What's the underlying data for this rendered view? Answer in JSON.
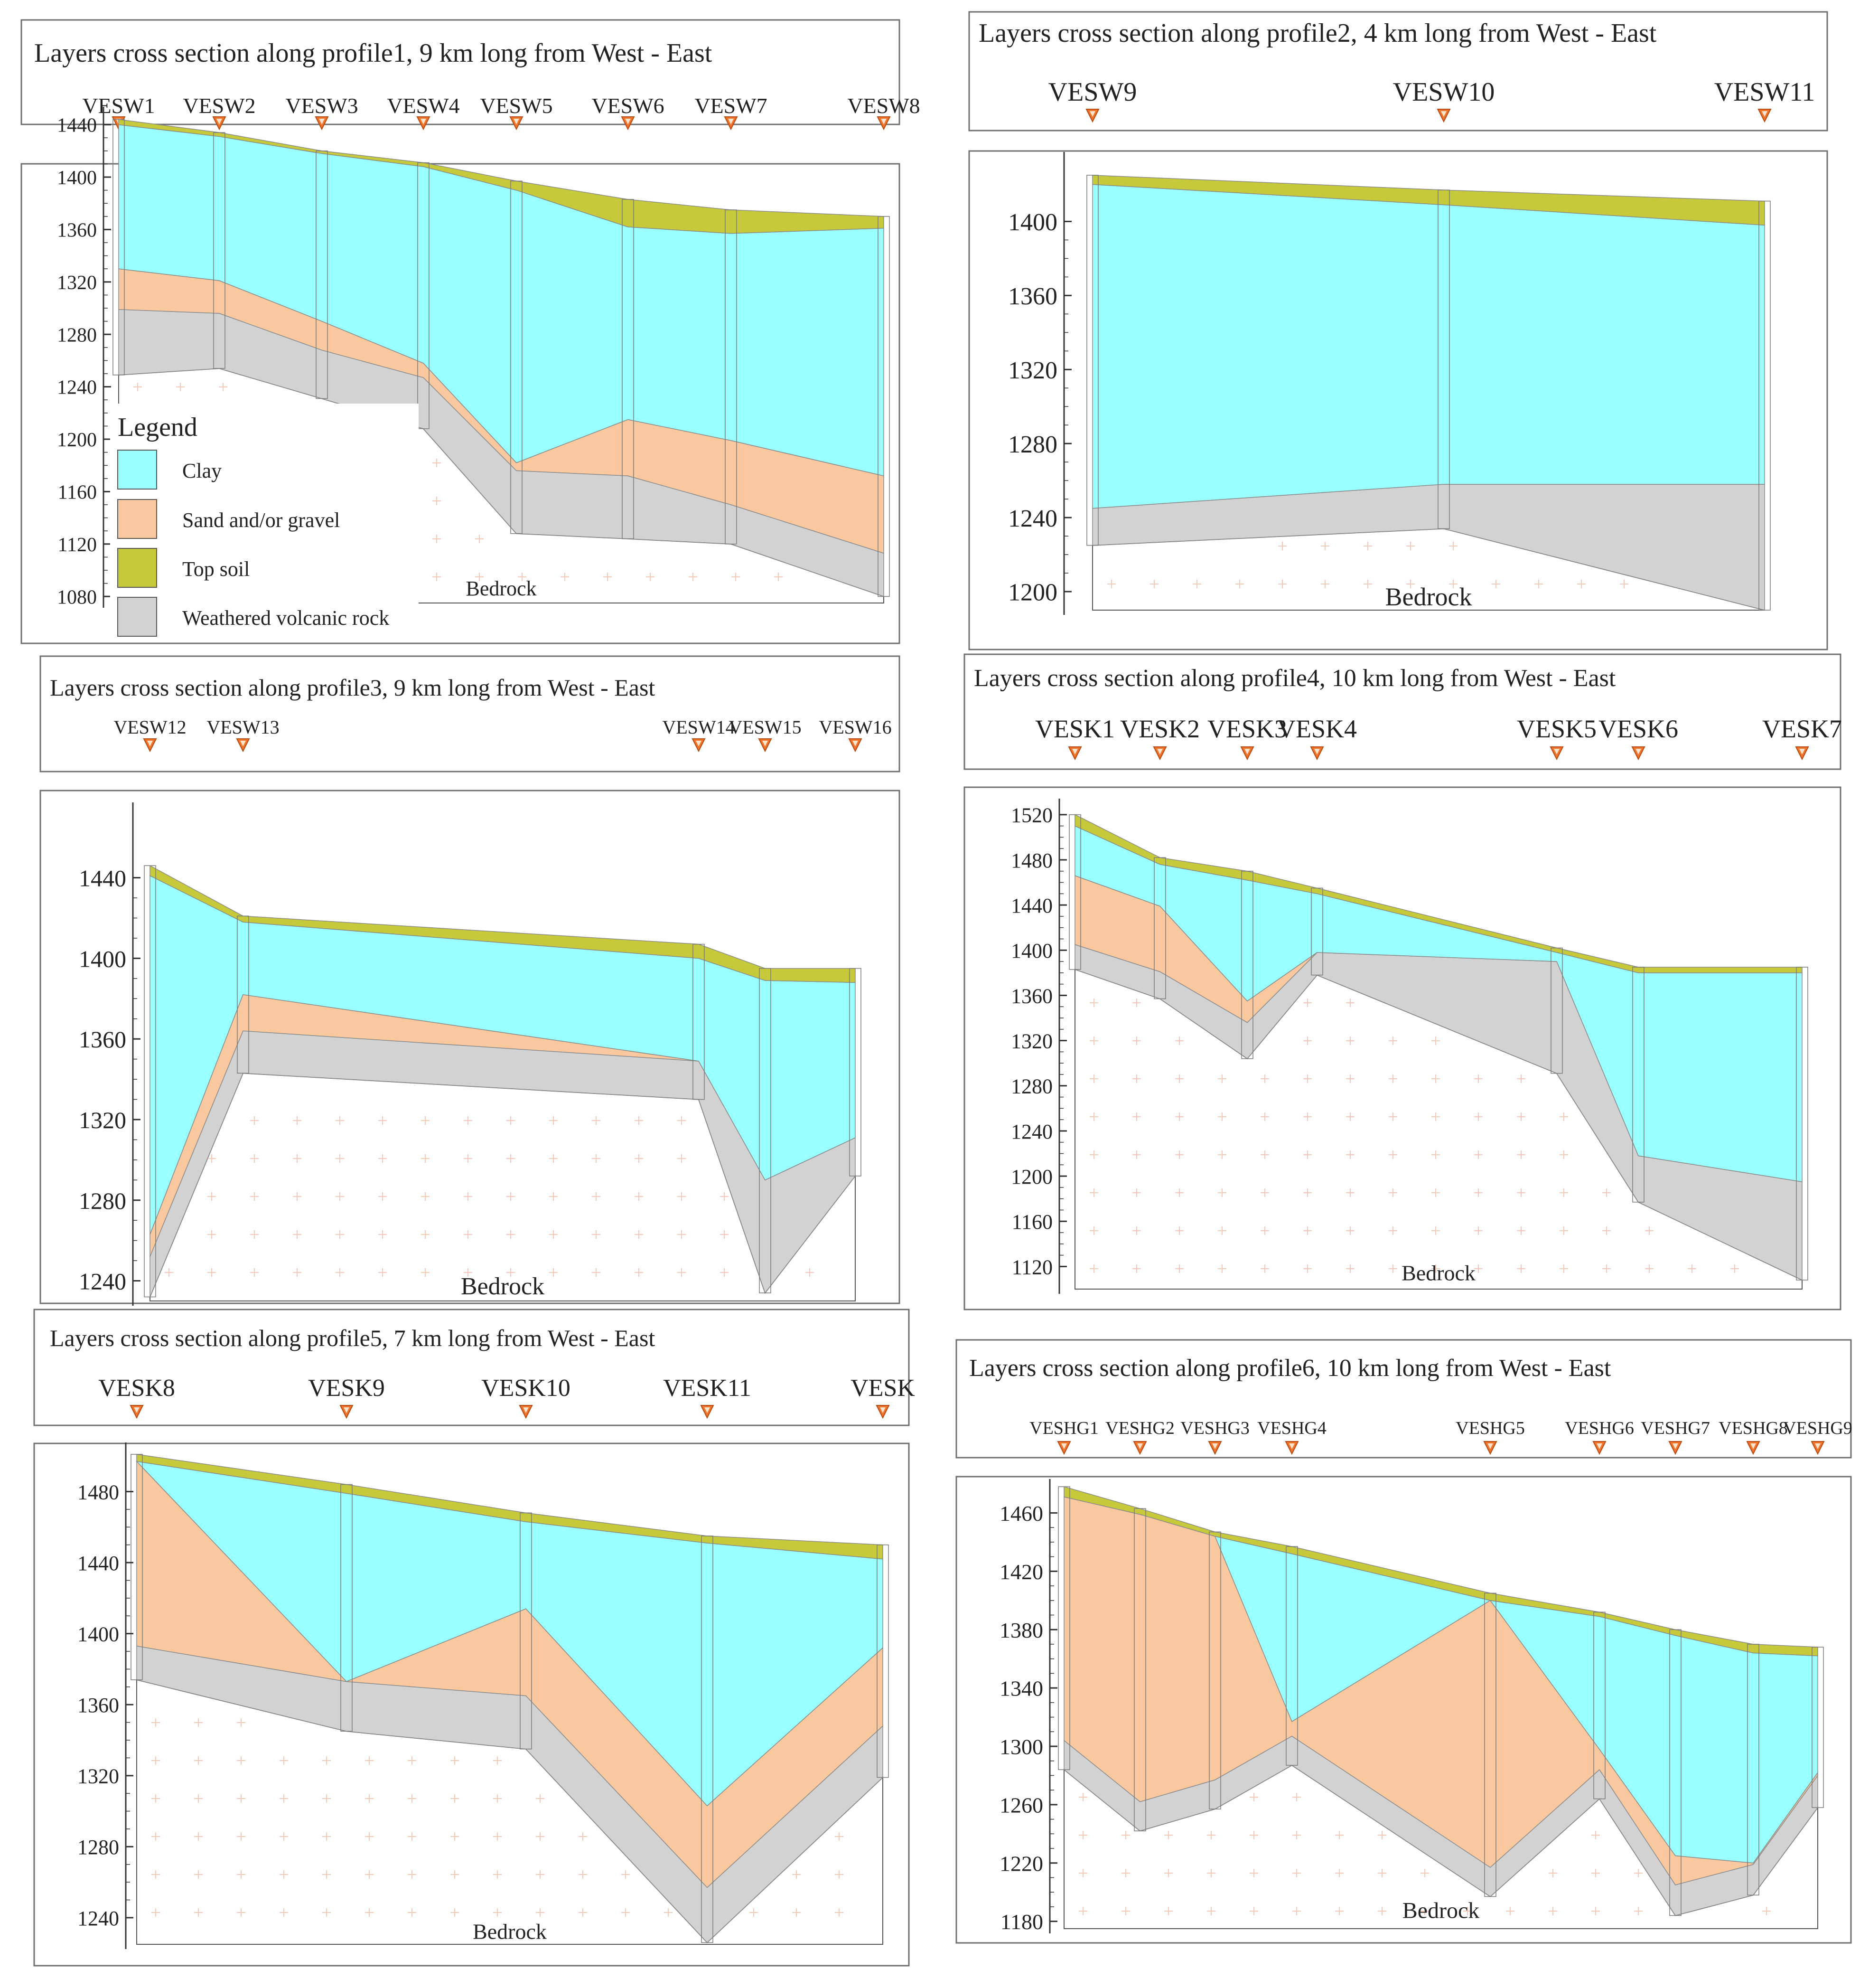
{
  "colors": {
    "clay": "#99FFFF",
    "sand": "#FAC89E",
    "topsoil": "#C5C93A",
    "weathered": "#D2D2D2",
    "bedrock": "#FFFFFF",
    "marker": "#F0742C",
    "grid_plus": "#F5C8B8"
  },
  "legend": {
    "title": "Legend",
    "items": [
      "Clay",
      "Sand and/or gravel",
      "Top soil",
      "Weathered volcanic rock"
    ]
  },
  "bedrock_label": "Bedrock",
  "profiles": [
    {
      "title": "Layers cross section along profile1, 9 km long from West - East",
      "stations": [
        "VESW1",
        "VESW2",
        "VESW3",
        "VESW4",
        "VESW5",
        "VESW6",
        "VESW7",
        "VESW8"
      ],
      "yticks": [
        1440,
        1400,
        1360,
        1320,
        1280,
        1240,
        1200,
        1160,
        1120,
        1080
      ],
      "ylim": [
        1075,
        1450
      ],
      "boundaries": {
        "surface": [
          1444,
          1434,
          1420,
          1411,
          1397,
          1383,
          1375,
          1370
        ],
        "topsoil": [
          1440,
          1431,
          1418,
          1408,
          1390,
          1362,
          1357,
          1361
        ],
        "clay": [
          1330,
          1321,
          1290,
          1258,
          1182,
          1215,
          1199,
          1172
        ],
        "sand": [
          1299,
          1296,
          1268,
          1247,
          1176,
          1172,
          1150,
          1113
        ],
        "weathered": [
          1249,
          1254,
          1231,
          1208,
          1128,
          1124,
          1120,
          1080
        ]
      }
    },
    {
      "title": "Layers cross section along profile2, 4 km long from West - East",
      "stations": [
        "VESW9",
        "VESW10",
        "VESW11"
      ],
      "yticks": [
        1400,
        1360,
        1320,
        1280,
        1240,
        1200
      ],
      "ylim": [
        1190,
        1435
      ],
      "boundaries": {
        "surface": [
          1425,
          1417,
          1411
        ],
        "topsoil": [
          1420,
          1409,
          1398
        ],
        "clay": [
          1245,
          1258,
          1258
        ],
        "sand": [
          1245,
          1258,
          1258
        ],
        "weathered": [
          1225,
          1234,
          1190
        ]
      }
    },
    {
      "title": "Layers cross section along profile3, 9 km long from West - East",
      "stations": [
        "VESW12",
        "VESW13",
        "VESW14",
        "VESW15",
        "VESW16"
      ],
      "yticks": [
        1440,
        1400,
        1360,
        1320,
        1280,
        1240
      ],
      "ylim": [
        1230,
        1475
      ],
      "boundaries": {
        "surface": [
          1446,
          1421,
          1407,
          1395,
          1395
        ],
        "topsoil": [
          1441,
          1418,
          1400,
          1389,
          1388
        ],
        "clay": [
          1263,
          1382,
          1349,
          1290,
          1311
        ],
        "sand": [
          1252,
          1364,
          1349,
          1290,
          1311
        ],
        "weathered": [
          1232,
          1343,
          1330,
          1234,
          1292
        ]
      }
    },
    {
      "title": "Layers cross section along profile4, 10 km long from West - East",
      "stations": [
        "VESK1",
        "VESK2",
        "VESK3",
        "VESK4",
        "VESK5",
        "VESK6",
        "VESK7"
      ],
      "yticks": [
        1520,
        1480,
        1440,
        1400,
        1360,
        1320,
        1280,
        1240,
        1200,
        1160,
        1120
      ],
      "ylim": [
        1100,
        1530
      ],
      "boundaries": {
        "surface": [
          1520,
          1482,
          1470,
          1455,
          1402,
          1385,
          1385
        ],
        "topsoil": [
          1510,
          1476,
          1462,
          1450,
          1398,
          1380,
          1380
        ],
        "clay": [
          1466,
          1439,
          1355,
          1398,
          1390,
          1218,
          1195
        ],
        "sand": [
          1405,
          1381,
          1336,
          1398,
          1390,
          1218,
          1195
        ],
        "weathered": [
          1383,
          1357,
          1304,
          1378,
          1291,
          1177,
          1108
        ]
      }
    },
    {
      "title": "Layers cross section along profile5, 7 km long from West - East",
      "stations": [
        "VESK8",
        "VESK9",
        "VESK10",
        "VESK11",
        "VESK"
      ],
      "yticks": [
        1480,
        1440,
        1400,
        1360,
        1320,
        1280,
        1240
      ],
      "ylim": [
        1225,
        1505
      ],
      "boundaries": {
        "surface": [
          1501,
          1484,
          1468,
          1455,
          1450
        ],
        "topsoil": [
          1497,
          1479,
          1463,
          1451,
          1442
        ],
        "clay": [
          1497,
          1373,
          1414,
          1303,
          1392
        ],
        "sand": [
          1393,
          1373,
          1365,
          1257,
          1348
        ],
        "weathered": [
          1374,
          1345,
          1335,
          1226,
          1319
        ]
      }
    },
    {
      "title": "Layers cross section along profile6, 10 km long from West - East",
      "stations": [
        "VESHG1",
        "VESHG2",
        "VESHG3",
        "VESHG4",
        "VESHG5",
        "VESHG6",
        "VESHG7",
        "VESHG8",
        "VESHG9"
      ],
      "yticks": [
        1460,
        1420,
        1380,
        1340,
        1300,
        1260,
        1220,
        1180
      ],
      "ylim": [
        1175,
        1480
      ],
      "boundaries": {
        "surface": [
          1478,
          1463,
          1447,
          1437,
          1405,
          1392,
          1380,
          1370,
          1368
        ],
        "topsoil": [
          1471,
          1459,
          1444,
          1432,
          1400,
          1389,
          1376,
          1364,
          1362
        ],
        "clay": [
          1471,
          1459,
          1444,
          1317,
          1400,
          1298,
          1225,
          1220,
          1282
        ],
        "sand": [
          1304,
          1262,
          1277,
          1307,
          1217,
          1284,
          1205,
          1219,
          1280
        ],
        "weathered": [
          1284,
          1242,
          1257,
          1287,
          1197,
          1264,
          1184,
          1198,
          1258
        ]
      }
    }
  ]
}
